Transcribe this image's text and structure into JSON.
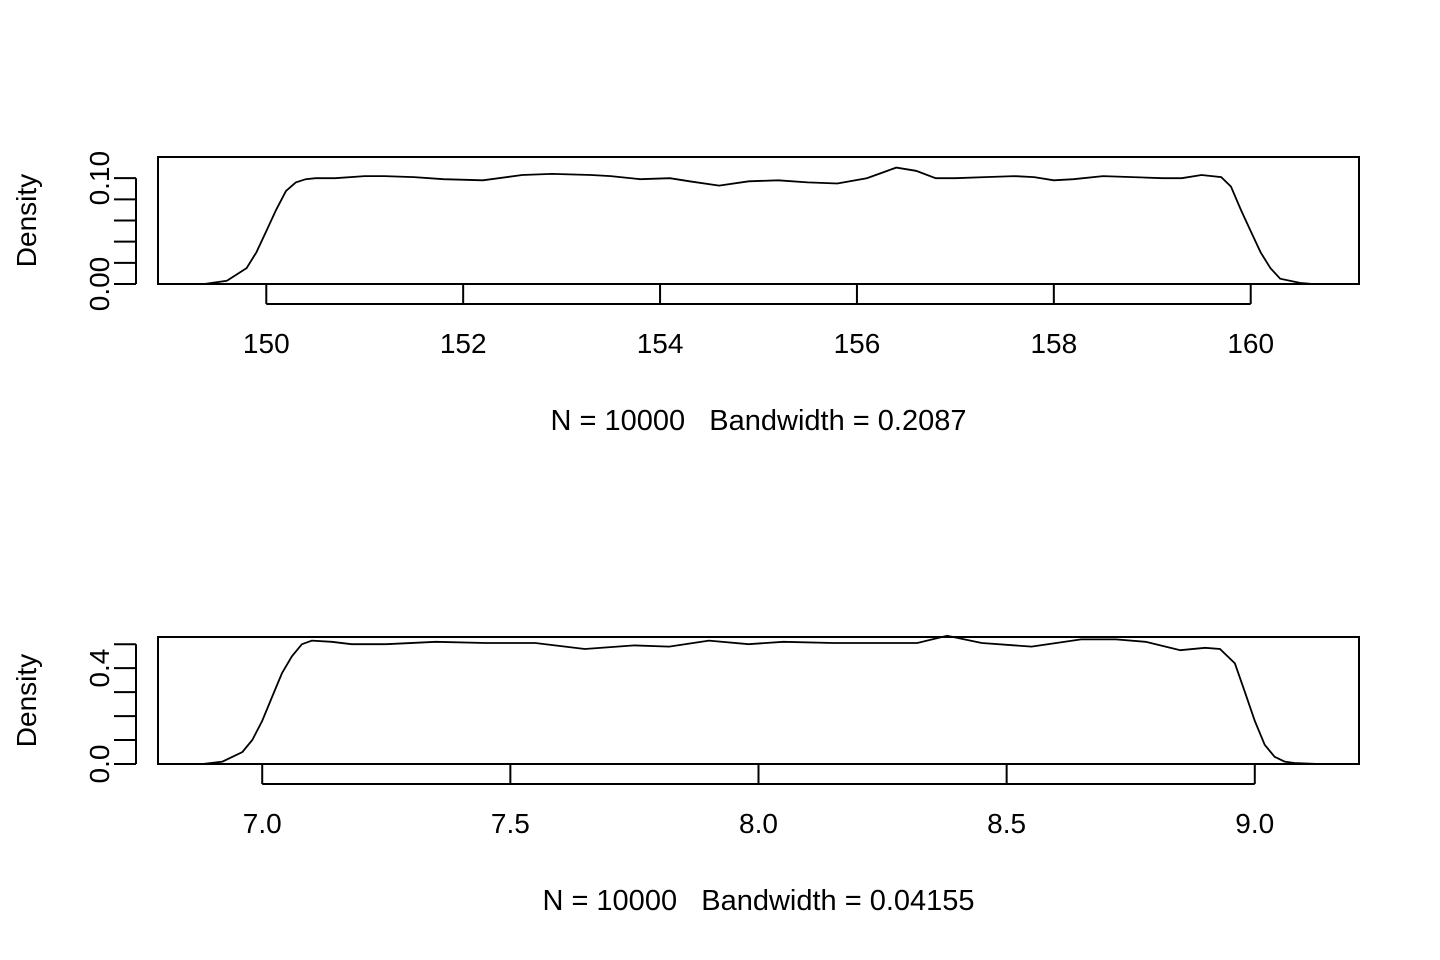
{
  "chart_data": [
    {
      "type": "line",
      "xlabel": "N = 10000   Bandwidth = 0.2087",
      "ylabel": "Density",
      "xlim": [
        148.9,
        161.1
      ],
      "ylim": [
        0.0,
        0.12
      ],
      "x_ticks": [
        150,
        152,
        154,
        156,
        158,
        160
      ],
      "x_tick_labels": [
        "150",
        "152",
        "154",
        "156",
        "158",
        "160"
      ],
      "y_ticks": [
        0.0,
        0.02,
        0.04,
        0.06,
        0.08,
        0.1
      ],
      "y_tick_labels": [
        "0.00",
        "",
        "",
        "",
        "",
        "0.10"
      ],
      "grid": false,
      "legend": "none",
      "series": [
        {
          "x": [
            149.37,
            149.6,
            149.8,
            149.9,
            150.0,
            150.1,
            150.2,
            150.3,
            150.4,
            150.5,
            150.7,
            151.0,
            151.2,
            151.5,
            151.8,
            152.2,
            152.6,
            152.9,
            153.3,
            153.5,
            153.8,
            154.1,
            154.3,
            154.6,
            154.9,
            155.2,
            155.5,
            155.8,
            156.1,
            156.4,
            156.6,
            156.8,
            157.0,
            157.3,
            157.6,
            157.8,
            158.0,
            158.2,
            158.5,
            158.8,
            159.1,
            159.3,
            159.5,
            159.7,
            159.8,
            159.9,
            160.0,
            160.1,
            160.2,
            160.3,
            160.5,
            160.63
          ],
          "y": [
            0.0,
            0.003,
            0.015,
            0.03,
            0.05,
            0.07,
            0.088,
            0.096,
            0.099,
            0.1,
            0.1,
            0.102,
            0.102,
            0.101,
            0.099,
            0.098,
            0.103,
            0.104,
            0.103,
            0.102,
            0.099,
            0.1,
            0.097,
            0.093,
            0.097,
            0.098,
            0.096,
            0.095,
            0.1,
            0.11,
            0.107,
            0.1,
            0.1,
            0.101,
            0.102,
            0.101,
            0.098,
            0.099,
            0.102,
            0.101,
            0.1,
            0.1,
            0.103,
            0.101,
            0.092,
            0.07,
            0.05,
            0.03,
            0.015,
            0.005,
            0.001,
            0.0
          ]
        }
      ]
    },
    {
      "type": "line",
      "xlabel": "N = 10000   Bandwidth = 0.04155",
      "ylabel": "Density",
      "xlim": [
        6.79,
        9.21
      ],
      "ylim": [
        0.0,
        0.53
      ],
      "x_ticks": [
        7.0,
        7.5,
        8.0,
        8.5,
        9.0
      ],
      "x_tick_labels": [
        "7.0",
        "7.5",
        "8.0",
        "8.5",
        "9.0"
      ],
      "y_ticks": [
        0.0,
        0.1,
        0.2,
        0.3,
        0.4,
        0.5
      ],
      "y_tick_labels": [
        "0.0",
        "",
        "",
        "",
        "0.4",
        ""
      ],
      "grid": false,
      "legend": "none",
      "series": [
        {
          "x": [
            6.88,
            6.92,
            6.96,
            6.98,
            7.0,
            7.02,
            7.04,
            7.06,
            7.08,
            7.1,
            7.14,
            7.18,
            7.25,
            7.35,
            7.45,
            7.55,
            7.65,
            7.75,
            7.82,
            7.9,
            7.98,
            8.05,
            8.15,
            8.25,
            8.32,
            8.38,
            8.45,
            8.55,
            8.65,
            8.72,
            8.78,
            8.85,
            8.9,
            8.93,
            8.96,
            8.98,
            9.0,
            9.02,
            9.04,
            9.06,
            9.08,
            9.13
          ],
          "y": [
            0.0,
            0.01,
            0.05,
            0.1,
            0.18,
            0.28,
            0.38,
            0.45,
            0.5,
            0.515,
            0.51,
            0.5,
            0.5,
            0.51,
            0.505,
            0.505,
            0.48,
            0.495,
            0.49,
            0.515,
            0.5,
            0.51,
            0.505,
            0.505,
            0.505,
            0.535,
            0.505,
            0.49,
            0.52,
            0.52,
            0.51,
            0.475,
            0.485,
            0.48,
            0.42,
            0.3,
            0.18,
            0.08,
            0.03,
            0.01,
            0.004,
            0.0
          ]
        }
      ]
    }
  ]
}
